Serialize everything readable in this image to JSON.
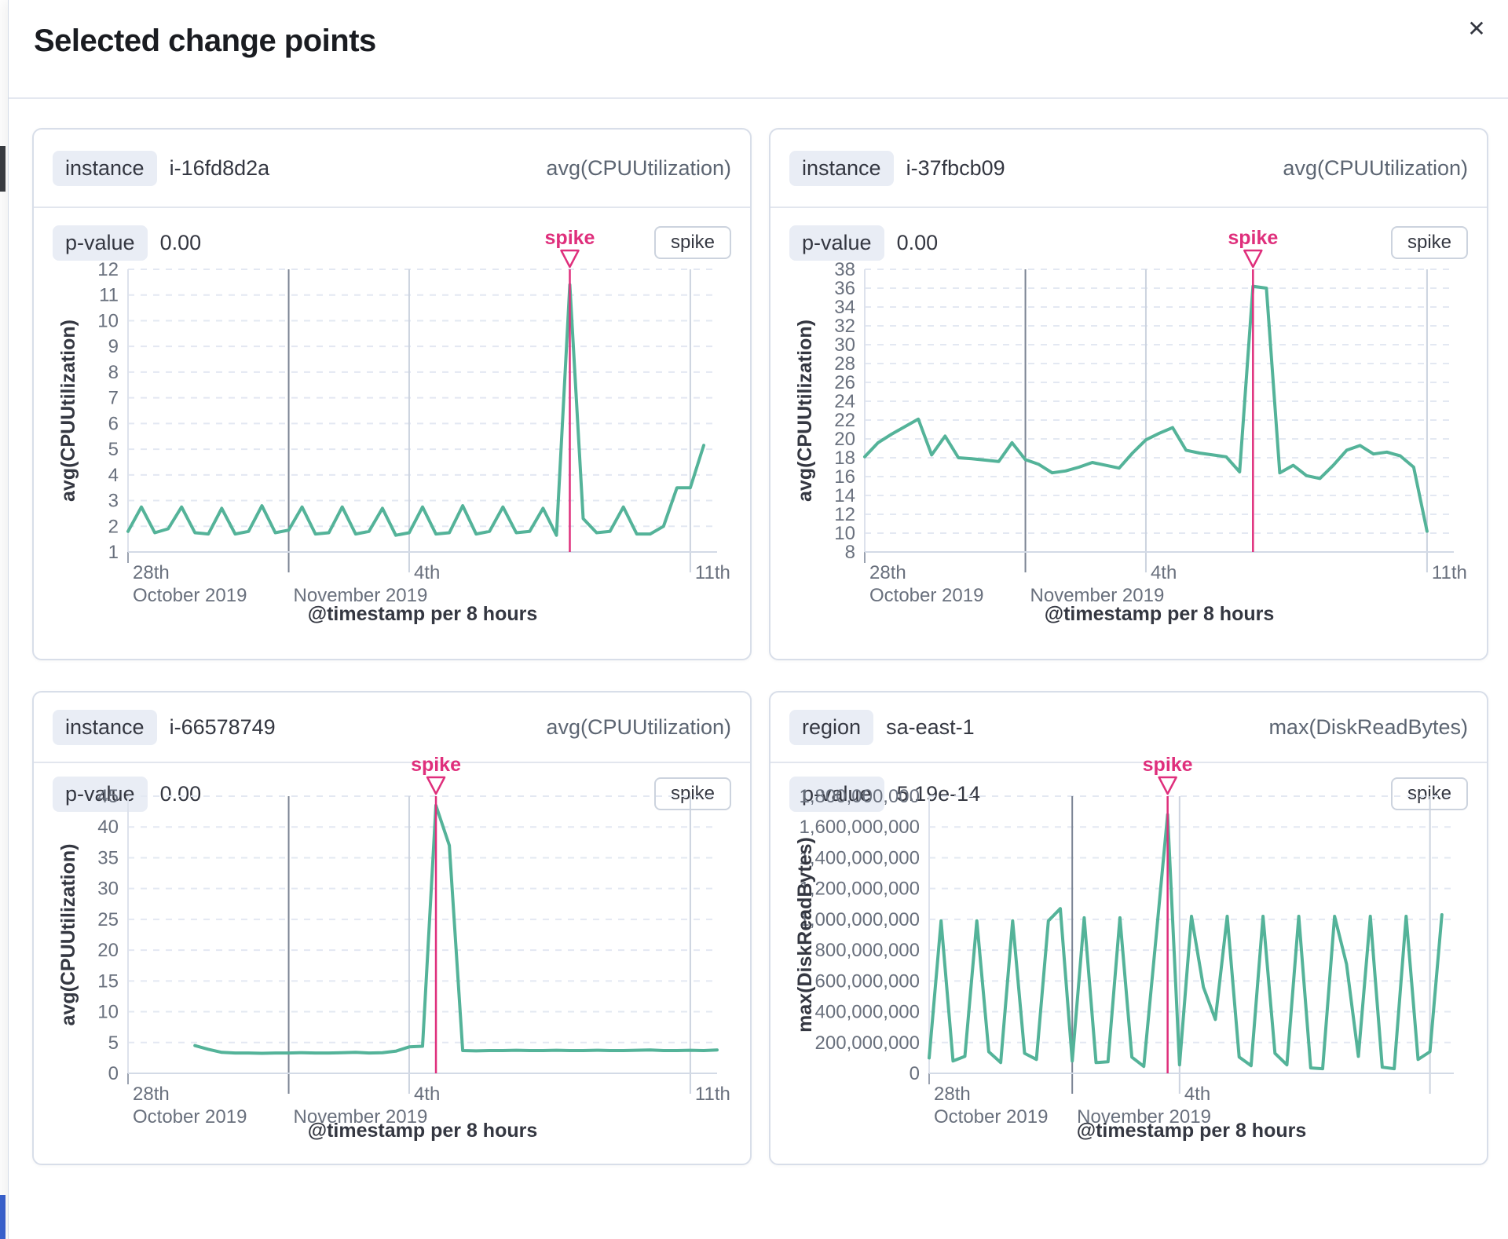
{
  "modal": {
    "title": "Selected change points",
    "close_icon": "✕"
  },
  "colors": {
    "series_green": "#54b399",
    "spike_pink": "#df2f7c",
    "grid_dash": "#e3e8f2",
    "axis_line": "#d3dae6",
    "minor_vline": "#ccd3df",
    "month_vline": "#7b8494",
    "start_vline": "#dde2ec",
    "tick_text": "#69707d",
    "axis_title_text": "#343741"
  },
  "cards": [
    {
      "field_badge": "instance",
      "field_value": "i-16fd8d2a",
      "metric": "avg(CPUUtilization)",
      "p_value_badge": "p-value",
      "p_value": "0.00",
      "change_type": "spike"
    },
    {
      "field_badge": "instance",
      "field_value": "i-37fbcb09",
      "metric": "avg(CPUUtilization)",
      "p_value_badge": "p-value",
      "p_value": "0.00",
      "change_type": "spike"
    },
    {
      "field_badge": "instance",
      "field_value": "i-66578749",
      "metric": "avg(CPUUtilization)",
      "p_value_badge": "p-value",
      "p_value": "0.00",
      "change_type": "spike"
    },
    {
      "field_badge": "region",
      "field_value": "sa-east-1",
      "metric": "max(DiskReadBytes)",
      "p_value_badge": "p-value",
      "p_value": "5.19e-14",
      "change_type": "spike"
    }
  ],
  "chart_data": [
    {
      "type": "line",
      "title": "instance i-16fd8d2a avg(CPUUtilization)",
      "ylabel": "avg(CPUUtilization)",
      "xlabel": "@timestamp per 8 hours",
      "ylim": [
        1,
        12
      ],
      "ytick_step": 1,
      "y_format": "plain",
      "x_domain_buckets": 44,
      "x_ticks": [
        {
          "pos": 0,
          "day": "28th",
          "month": "October 2019",
          "style": "start"
        },
        {
          "pos": 12,
          "day": "",
          "month": "November 2019",
          "style": "month"
        },
        {
          "pos": 21,
          "day": "4th",
          "month": "",
          "style": "minor"
        },
        {
          "pos": 42,
          "day": "11th",
          "month": "",
          "style": "minor"
        }
      ],
      "annotation": {
        "label": "spike",
        "index": 33
      },
      "series": [
        {
          "name": "avg(CPUUtilization)",
          "start_index": 0,
          "values": [
            1.8,
            2.75,
            1.75,
            1.9,
            2.75,
            1.75,
            1.7,
            2.7,
            1.7,
            1.8,
            2.8,
            1.75,
            1.85,
            2.75,
            1.7,
            1.75,
            2.75,
            1.7,
            1.8,
            2.7,
            1.65,
            1.75,
            2.75,
            1.7,
            1.75,
            2.8,
            1.7,
            1.8,
            2.75,
            1.75,
            1.8,
            2.7,
            1.65,
            11.4,
            2.3,
            1.75,
            1.8,
            2.75,
            1.7,
            1.7,
            2.0,
            3.5,
            3.5,
            5.15
          ]
        }
      ]
    },
    {
      "type": "line",
      "title": "instance i-37fbcb09 avg(CPUUtilization)",
      "ylabel": "avg(CPUUtilization)",
      "xlabel": "@timestamp per 8 hours",
      "ylim": [
        8,
        38
      ],
      "ytick_step": 2,
      "y_format": "plain",
      "x_domain_buckets": 44,
      "x_ticks": [
        {
          "pos": 0,
          "day": "28th",
          "month": "October 2019",
          "style": "start"
        },
        {
          "pos": 12,
          "day": "",
          "month": "November 2019",
          "style": "month"
        },
        {
          "pos": 21,
          "day": "4th",
          "month": "",
          "style": "minor"
        },
        {
          "pos": 42,
          "day": "11th",
          "month": "",
          "style": "minor"
        }
      ],
      "annotation": {
        "label": "spike",
        "index": 29
      },
      "series": [
        {
          "name": "avg(CPUUtilization)",
          "start_index": 0,
          "values": [
            18.1,
            19.6,
            20.5,
            21.3,
            22.1,
            18.3,
            20.3,
            18.0,
            17.9,
            17.75,
            17.6,
            19.6,
            17.8,
            17.3,
            16.4,
            16.6,
            17.0,
            17.5,
            17.2,
            16.9,
            18.5,
            19.9,
            20.6,
            21.2,
            18.8,
            18.5,
            18.3,
            18.1,
            16.5,
            36.2,
            36.0,
            16.4,
            17.2,
            16.1,
            15.8,
            17.2,
            18.8,
            19.3,
            18.4,
            18.6,
            18.2,
            17.0,
            10.2
          ]
        }
      ]
    },
    {
      "type": "line",
      "title": "instance i-66578749 avg(CPUUtilization)",
      "ylabel": "avg(CPUUtilization)",
      "xlabel": "@timestamp per 8 hours",
      "ylim": [
        0,
        45
      ],
      "ytick_step": 5,
      "y_format": "plain",
      "x_domain_buckets": 44,
      "x_ticks": [
        {
          "pos": 0,
          "day": "28th",
          "month": "October 2019",
          "style": "start"
        },
        {
          "pos": 12,
          "day": "",
          "month": "November 2019",
          "style": "month"
        },
        {
          "pos": 21,
          "day": "4th",
          "month": "",
          "style": "minor"
        },
        {
          "pos": 42,
          "day": "11th",
          "month": "",
          "style": "minor"
        }
      ],
      "annotation": {
        "label": "spike",
        "index": 23
      },
      "series": [
        {
          "name": "avg(CPUUtilization)",
          "start_index": 5,
          "values": [
            4.5,
            3.9,
            3.4,
            3.3,
            3.3,
            3.25,
            3.3,
            3.3,
            3.35,
            3.3,
            3.3,
            3.35,
            3.4,
            3.3,
            3.35,
            3.6,
            4.3,
            4.4,
            43.5,
            37.0,
            3.7,
            3.65,
            3.7,
            3.7,
            3.75,
            3.7,
            3.7,
            3.75,
            3.7,
            3.7,
            3.75,
            3.7,
            3.7,
            3.75,
            3.8,
            3.7,
            3.7,
            3.75,
            3.7,
            3.8
          ]
        }
      ]
    },
    {
      "type": "line",
      "title": "region sa-east-1 max(DiskReadBytes)",
      "ylabel": "max(DiskReadBytes)",
      "xlabel": "@timestamp per 8 hours",
      "ylim": [
        0,
        1800000000
      ],
      "ytick_step": 200000000,
      "y_format": "comma",
      "x_domain_buckets": 44,
      "x_ticks": [
        {
          "pos": 0,
          "day": "28th",
          "month": "October 2019",
          "style": "start"
        },
        {
          "pos": 12,
          "day": "",
          "month": "November 2019",
          "style": "month"
        },
        {
          "pos": 21,
          "day": "4th",
          "month": "",
          "style": "minor"
        },
        {
          "pos": 42,
          "day": "",
          "month": "",
          "style": "minor"
        }
      ],
      "annotation": {
        "label": "spike",
        "index": 20
      },
      "series": [
        {
          "name": "max(DiskReadBytes)",
          "start_index": 0,
          "values": [
            100000000,
            990000000,
            80000000,
            110000000,
            990000000,
            140000000,
            70000000,
            990000000,
            130000000,
            90000000,
            990000000,
            1070000000,
            80000000,
            1010000000,
            70000000,
            75000000,
            1010000000,
            105000000,
            45000000,
            860000000,
            1680000000,
            55000000,
            1020000000,
            560000000,
            350000000,
            1020000000,
            106000000,
            50000000,
            1020000000,
            130000000,
            55000000,
            1020000000,
            35000000,
            30000000,
            1020000000,
            710000000,
            110000000,
            1020000000,
            40000000,
            30000000,
            1020000000,
            90000000,
            140000000,
            1030000000
          ]
        }
      ]
    }
  ]
}
